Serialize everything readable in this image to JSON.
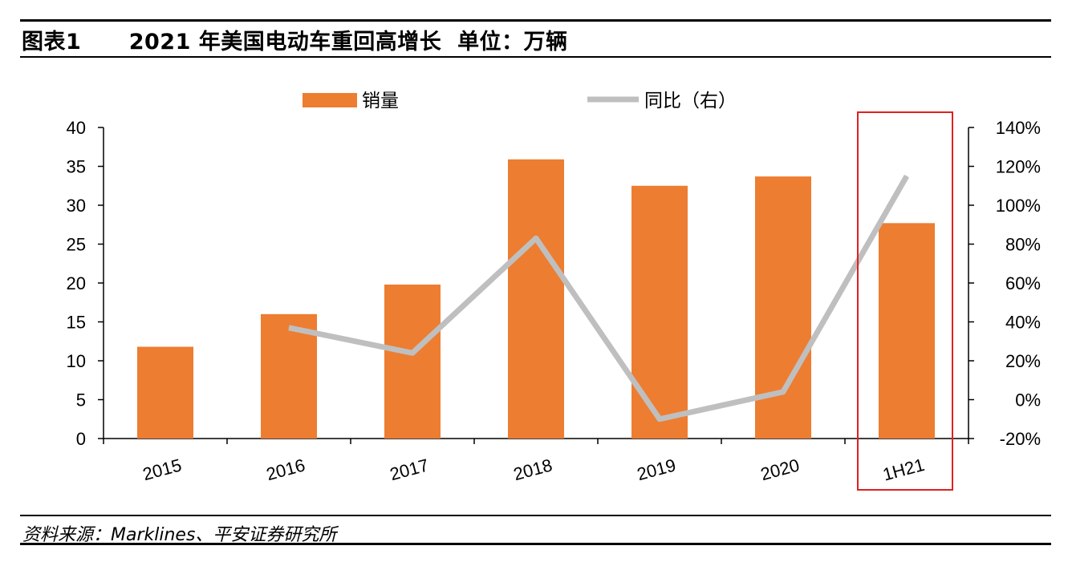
{
  "header": {
    "figure_label": "图表1",
    "title": "2021 年美国电动车重回高增长",
    "unit": "单位：万辆"
  },
  "source": "资料来源：Marklines、平安证券研究所",
  "colors": {
    "bar": "#ED7D31",
    "line": "#BFBFBF",
    "highlight_box": "#E02020",
    "axis": "#000000"
  },
  "chart_data": {
    "type": "bar",
    "categories": [
      "2015",
      "2016",
      "2017",
      "2018",
      "2019",
      "2020",
      "1H21"
    ],
    "series": [
      {
        "name": "销量",
        "type": "bar",
        "axis": "left",
        "values": [
          11.8,
          16.0,
          19.8,
          35.9,
          32.5,
          33.7,
          27.7
        ]
      },
      {
        "name": "同比（右）",
        "type": "line",
        "axis": "right",
        "values": [
          null,
          37,
          24,
          83,
          -10,
          4,
          115
        ]
      }
    ],
    "y_left": {
      "ylim": [
        0,
        40
      ],
      "ticks": [
        "0",
        "5",
        "10",
        "15",
        "20",
        "25",
        "30",
        "35",
        "40"
      ]
    },
    "y_right": {
      "ylim": [
        -20,
        140
      ],
      "ticks": [
        "-20%",
        "0%",
        "20%",
        "40%",
        "60%",
        "80%",
        "100%",
        "120%",
        "140%"
      ]
    },
    "legend_position": "top-center",
    "grid": false,
    "highlighted_category": "1H21"
  }
}
